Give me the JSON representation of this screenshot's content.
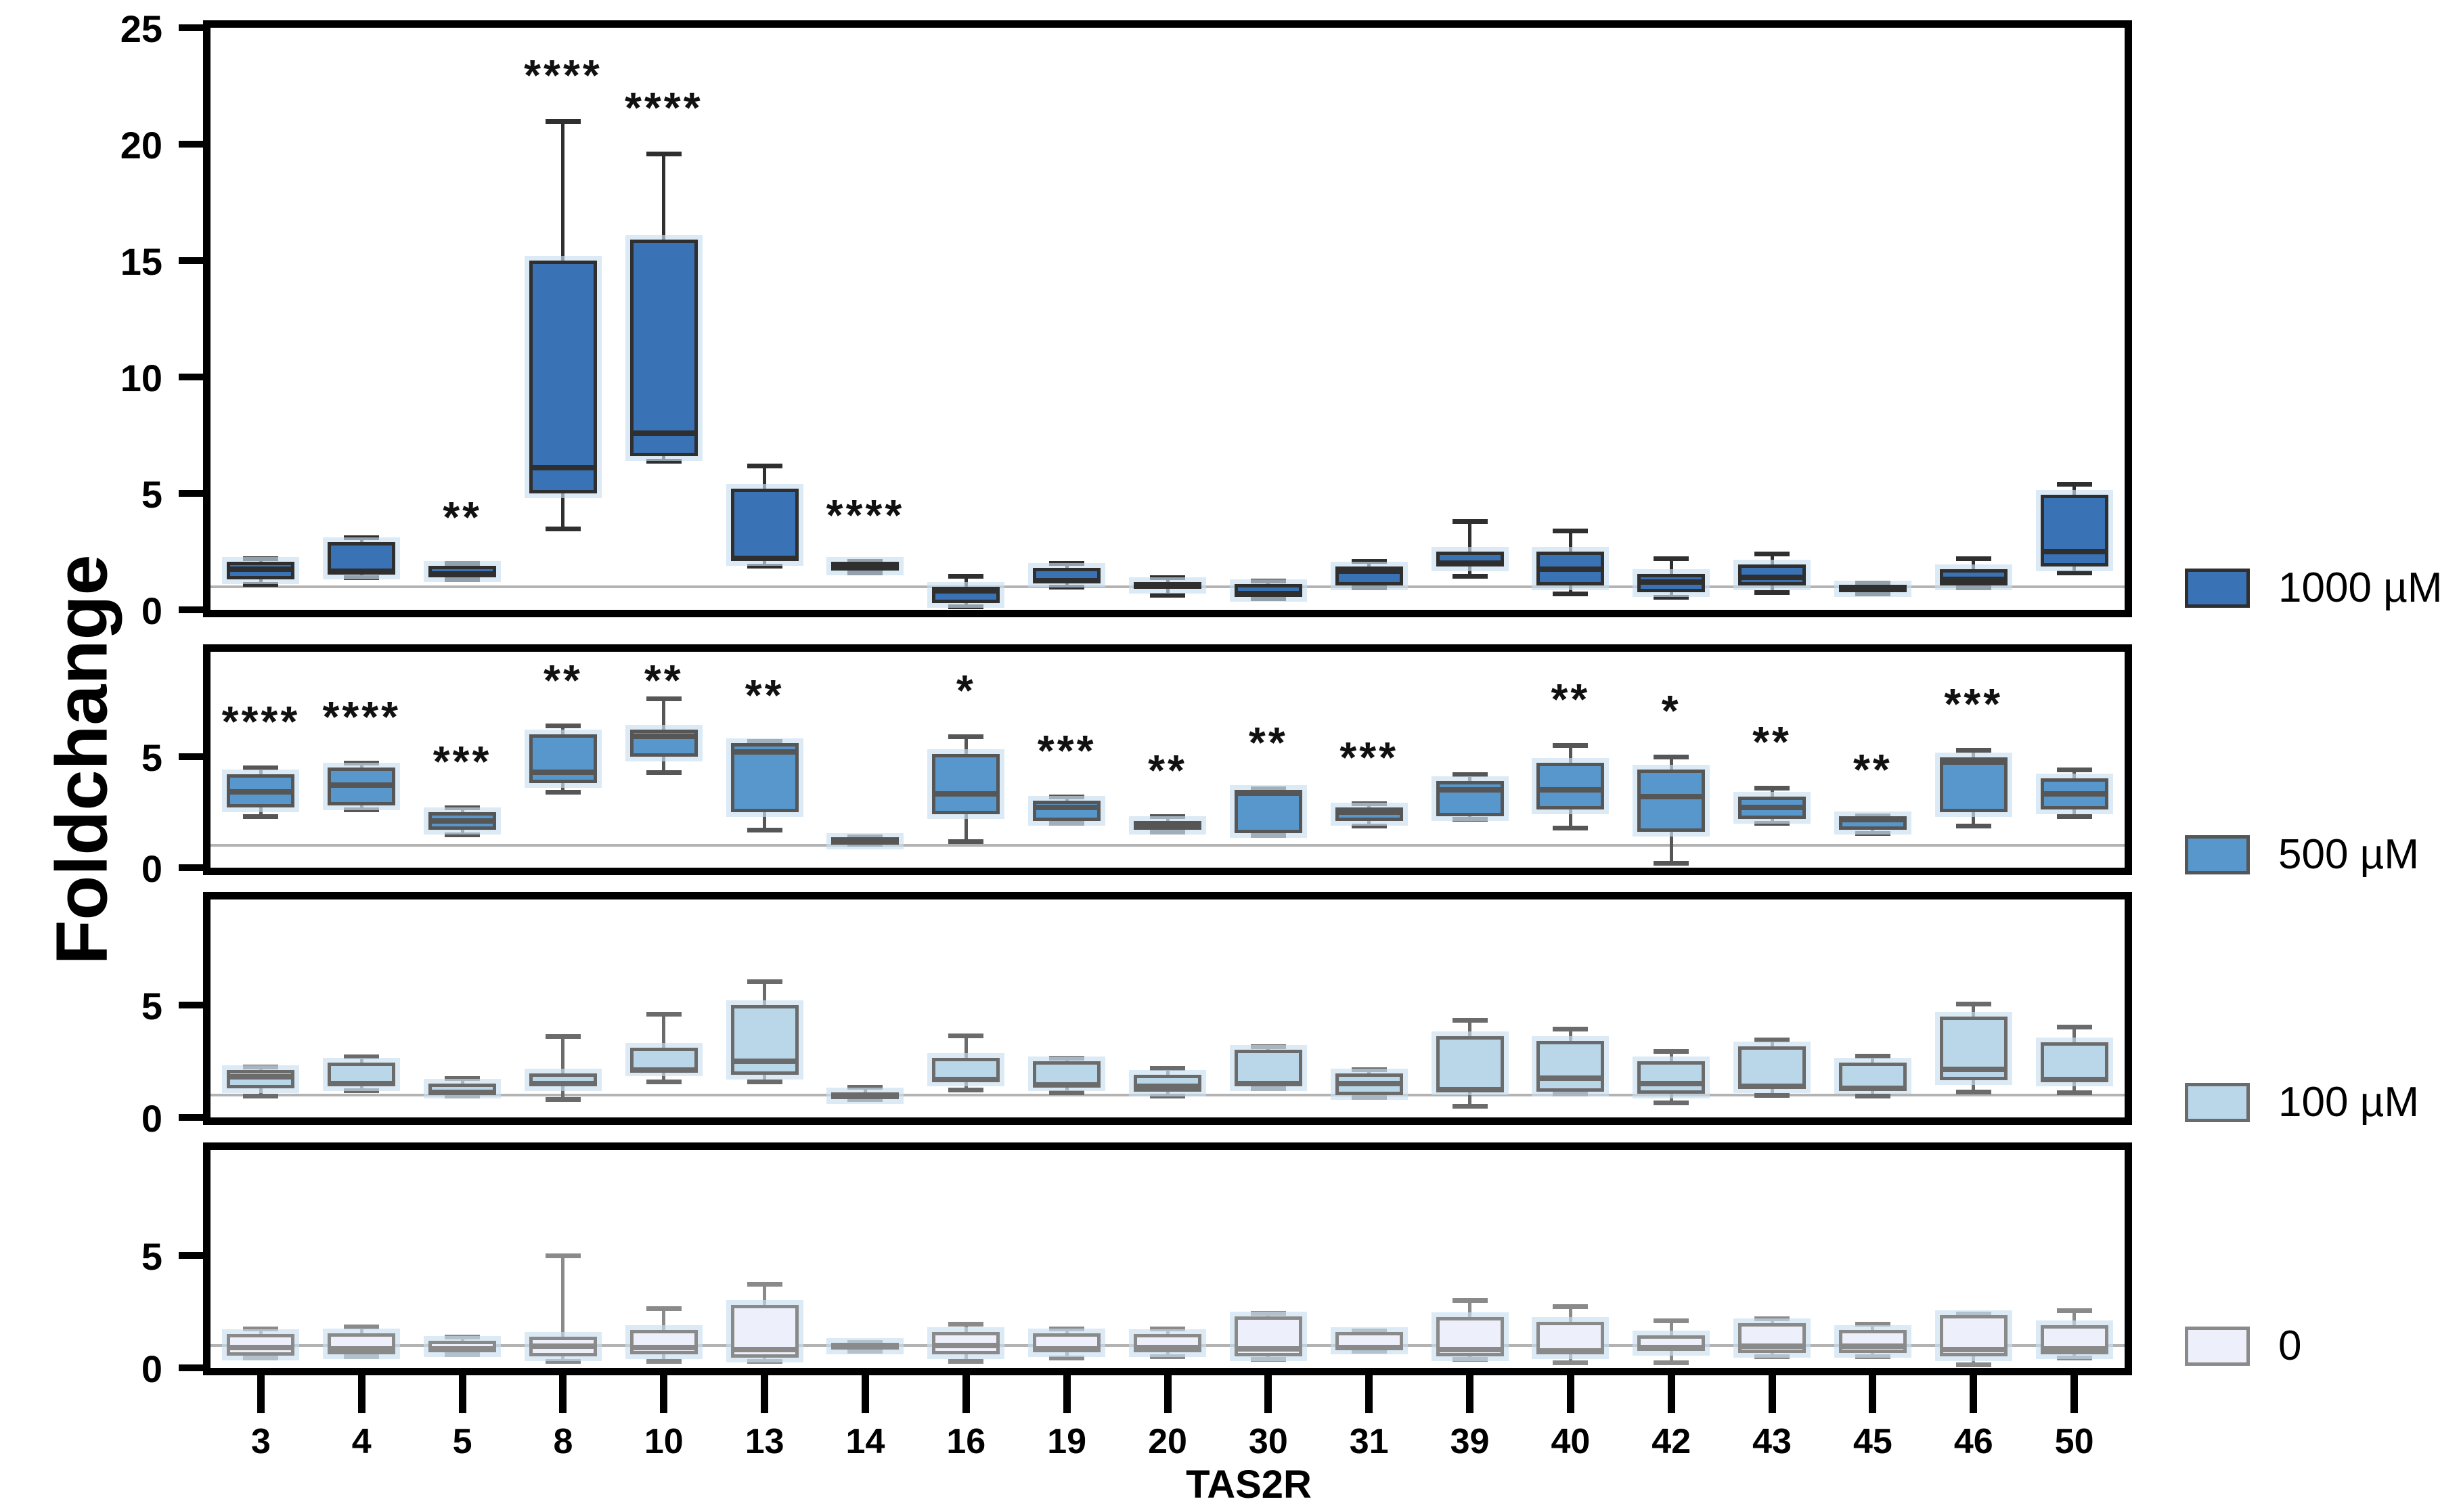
{
  "chart_data": {
    "type": "boxplot",
    "title": "",
    "xlabel": "TAS2R",
    "ylabel": "Foldchange",
    "legend_position": "right-of-each-panel",
    "grid": false,
    "reference_line_y": 1,
    "categories": [
      "3",
      "4",
      "5",
      "8",
      "10",
      "13",
      "14",
      "16",
      "19",
      "20",
      "30",
      "31",
      "39",
      "40",
      "42",
      "43",
      "45",
      "46",
      "50"
    ],
    "box_format": [
      "whisker_low",
      "q1",
      "median",
      "q3",
      "whisker_high",
      "significance"
    ],
    "panels": [
      {
        "legend_label": "1000 µM",
        "fill": "#3973B5",
        "stroke": "#2F2F2F",
        "ymax": 25,
        "yticks": [
          0,
          5,
          10,
          15,
          20,
          25
        ],
        "boxes": [
          [
            1.1,
            1.3,
            1.75,
            2.05,
            2.2,
            ""
          ],
          [
            1.4,
            1.5,
            1.65,
            2.9,
            3.1,
            ""
          ],
          [
            1.3,
            1.4,
            1.55,
            1.9,
            2.0,
            "**"
          ],
          [
            3.5,
            5.0,
            6.1,
            15.0,
            21.0,
            "****"
          ],
          [
            6.4,
            6.6,
            7.6,
            15.9,
            19.6,
            "****"
          ],
          [
            1.9,
            2.1,
            2.2,
            5.2,
            6.2,
            ""
          ],
          [
            1.6,
            1.7,
            1.9,
            2.05,
            2.1,
            "****"
          ],
          [
            0.15,
            0.3,
            0.8,
            1.0,
            1.45,
            ""
          ],
          [
            1.0,
            1.15,
            1.25,
            1.8,
            2.0,
            ""
          ],
          [
            0.65,
            0.9,
            1.05,
            1.2,
            1.4,
            ""
          ],
          [
            0.5,
            0.55,
            0.7,
            1.1,
            1.25,
            ""
          ],
          [
            0.95,
            1.05,
            1.65,
            1.85,
            2.1,
            ""
          ],
          [
            1.45,
            1.85,
            2.0,
            2.5,
            3.8,
            ""
          ],
          [
            0.7,
            1.05,
            1.75,
            2.5,
            3.4,
            ""
          ],
          [
            0.55,
            0.75,
            1.2,
            1.55,
            2.2,
            ""
          ],
          [
            0.75,
            1.05,
            1.4,
            1.95,
            2.4,
            ""
          ],
          [
            0.7,
            0.8,
            0.95,
            1.05,
            1.15,
            ""
          ],
          [
            0.95,
            1.05,
            1.3,
            1.75,
            2.2,
            ""
          ],
          [
            1.6,
            1.85,
            2.5,
            4.95,
            5.4,
            ""
          ]
        ]
      },
      {
        "legend_label": "500 µM",
        "fill": "#5897CB",
        "stroke": "#565656",
        "ymax": 9.7,
        "yticks": [
          0,
          5
        ],
        "boxes": [
          [
            2.3,
            2.7,
            3.4,
            4.2,
            4.5,
            "****"
          ],
          [
            2.6,
            2.8,
            3.7,
            4.5,
            4.7,
            "****"
          ],
          [
            1.5,
            1.7,
            2.1,
            2.5,
            2.7,
            "***"
          ],
          [
            3.4,
            3.8,
            4.3,
            6.0,
            6.4,
            "**"
          ],
          [
            4.3,
            5.0,
            5.9,
            6.2,
            7.6,
            "**"
          ],
          [
            1.7,
            2.5,
            5.2,
            5.6,
            5.7,
            "**"
          ],
          [
            1.05,
            1.15,
            1.25,
            1.35,
            1.4,
            ""
          ],
          [
            1.2,
            2.4,
            3.3,
            5.1,
            5.9,
            "*"
          ],
          [
            2.0,
            2.1,
            2.7,
            3.0,
            3.2,
            "***"
          ],
          [
            1.6,
            1.7,
            1.85,
            2.1,
            2.3,
            "**"
          ],
          [
            1.45,
            1.55,
            3.35,
            3.5,
            3.55,
            "**"
          ],
          [
            1.9,
            2.1,
            2.5,
            2.7,
            2.9,
            "***"
          ],
          [
            2.2,
            2.3,
            3.5,
            3.9,
            4.2,
            ""
          ],
          [
            1.8,
            2.6,
            3.5,
            4.7,
            5.5,
            "**"
          ],
          [
            0.2,
            1.6,
            3.2,
            4.4,
            5.0,
            "*"
          ],
          [
            2.0,
            2.2,
            2.7,
            3.2,
            3.6,
            "**"
          ],
          [
            1.55,
            1.7,
            2.15,
            2.3,
            2.35,
            "**"
          ],
          [
            1.9,
            2.5,
            4.75,
            4.95,
            5.3,
            "***"
          ],
          [
            2.3,
            2.6,
            3.3,
            4.0,
            4.4,
            ""
          ]
        ]
      },
      {
        "legend_label": "100 µM",
        "fill": "#B9D7E9",
        "stroke": "#6B6B6B",
        "ymax": 9.7,
        "yticks": [
          0,
          5
        ],
        "boxes": [
          [
            0.95,
            1.3,
            1.8,
            2.1,
            2.25,
            ""
          ],
          [
            1.2,
            1.4,
            1.5,
            2.45,
            2.7,
            ""
          ],
          [
            0.95,
            1.05,
            1.1,
            1.5,
            1.75,
            ""
          ],
          [
            0.8,
            1.4,
            1.5,
            1.95,
            3.6,
            ""
          ],
          [
            1.6,
            2.05,
            2.1,
            3.1,
            4.6,
            ""
          ],
          [
            1.6,
            1.9,
            2.5,
            5.0,
            6.05,
            ""
          ],
          [
            0.8,
            0.85,
            0.95,
            1.1,
            1.35,
            ""
          ],
          [
            1.25,
            1.6,
            1.7,
            2.65,
            3.65,
            ""
          ],
          [
            1.1,
            1.4,
            1.45,
            2.5,
            2.65,
            ""
          ],
          [
            0.95,
            1.15,
            1.4,
            1.9,
            2.2,
            ""
          ],
          [
            1.3,
            1.4,
            1.5,
            3.0,
            3.15,
            ""
          ],
          [
            0.9,
            1.0,
            1.5,
            1.95,
            2.15,
            ""
          ],
          [
            0.5,
            1.2,
            1.25,
            3.6,
            4.35,
            ""
          ],
          [
            1.05,
            1.15,
            1.75,
            3.4,
            3.95,
            ""
          ],
          [
            0.65,
            1.05,
            1.5,
            2.5,
            2.95,
            ""
          ],
          [
            1.0,
            1.3,
            1.4,
            3.15,
            3.45,
            ""
          ],
          [
            0.95,
            1.25,
            1.3,
            2.45,
            2.75,
            ""
          ],
          [
            1.15,
            1.65,
            2.15,
            4.5,
            5.05,
            ""
          ],
          [
            1.1,
            1.6,
            1.7,
            3.35,
            4.05,
            ""
          ]
        ]
      },
      {
        "legend_label": "0",
        "fill": "#EDF0FA",
        "stroke": "#8A8A8A",
        "ymax": 9.7,
        "yticks": [
          0,
          5
        ],
        "boxes": [
          [
            0.45,
            0.55,
            0.9,
            1.5,
            1.75,
            ""
          ],
          [
            0.5,
            0.6,
            0.85,
            1.55,
            1.85,
            ""
          ],
          [
            0.6,
            0.7,
            0.85,
            1.2,
            1.4,
            ""
          ],
          [
            0.3,
            0.5,
            0.95,
            1.4,
            5.0,
            ""
          ],
          [
            0.3,
            0.6,
            0.9,
            1.7,
            2.65,
            ""
          ],
          [
            0.3,
            0.45,
            0.8,
            2.8,
            3.75,
            ""
          ],
          [
            0.75,
            0.8,
            0.95,
            1.1,
            1.15,
            ""
          ],
          [
            0.3,
            0.6,
            1.0,
            1.6,
            1.95,
            ""
          ],
          [
            0.45,
            0.7,
            0.85,
            1.55,
            1.75,
            ""
          ],
          [
            0.5,
            0.7,
            0.9,
            1.5,
            1.75,
            ""
          ],
          [
            0.4,
            0.5,
            0.85,
            2.3,
            2.45,
            ""
          ],
          [
            0.75,
            0.8,
            0.9,
            1.6,
            1.65,
            ""
          ],
          [
            0.4,
            0.5,
            0.8,
            2.25,
            3.0,
            ""
          ],
          [
            0.25,
            0.6,
            0.75,
            2.05,
            2.75,
            ""
          ],
          [
            0.25,
            0.75,
            0.9,
            1.45,
            2.1,
            ""
          ],
          [
            0.5,
            0.65,
            0.95,
            2.0,
            2.2,
            ""
          ],
          [
            0.5,
            0.65,
            0.95,
            1.7,
            1.95,
            ""
          ],
          [
            0.15,
            0.5,
            0.8,
            2.35,
            2.4,
            ""
          ],
          [
            0.45,
            0.6,
            0.85,
            1.9,
            2.55,
            ""
          ]
        ]
      }
    ]
  }
}
